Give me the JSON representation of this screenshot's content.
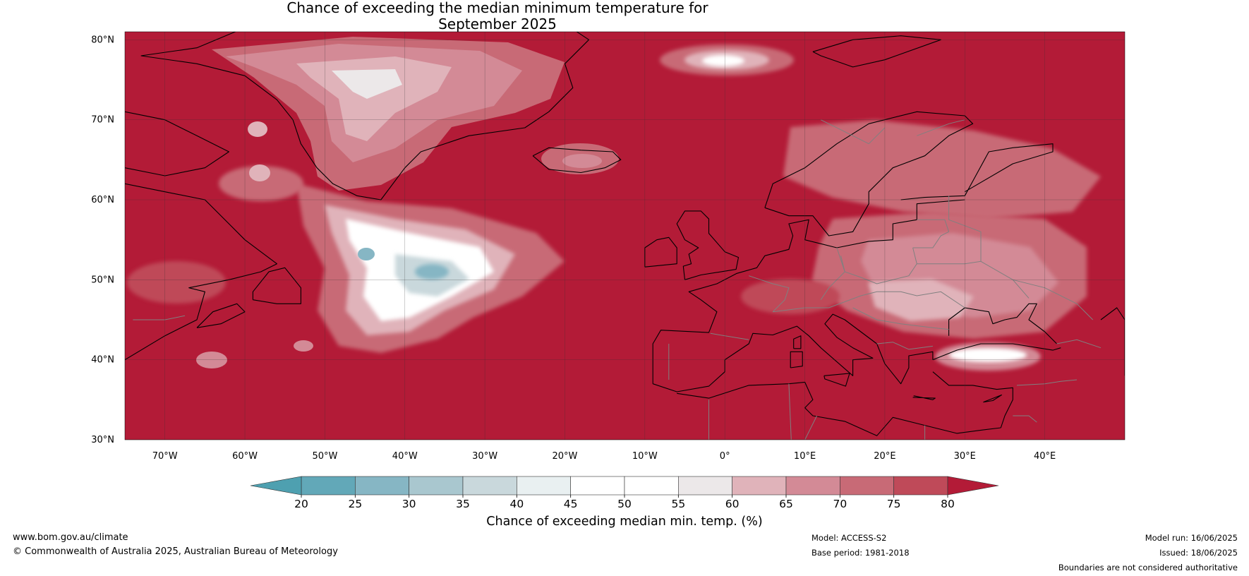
{
  "title": {
    "line1": "Chance of exceeding the median minimum temperature for",
    "line2": "September 2025"
  },
  "map": {
    "lat_labels": [
      "80°N",
      "70°N",
      "60°N",
      "50°N",
      "40°N",
      "30°N"
    ],
    "lon_labels": [
      "70°W",
      "60°W",
      "50°W",
      "40°W",
      "30°W",
      "20°W",
      "10°W",
      "0°",
      "10°E",
      "20°E",
      "30°E",
      "40°E"
    ],
    "lon_range": [
      -75,
      50
    ],
    "lat_range": [
      30,
      81
    ],
    "ocean_color": "#b31b37",
    "coastline_color": "#000000",
    "border_color": "#808080"
  },
  "colorbar": {
    "label": "Chance of exceeding median min. temp. (%)",
    "ticks": [
      "20",
      "25",
      "30",
      "35",
      "40",
      "45",
      "50",
      "55",
      "60",
      "65",
      "70",
      "75",
      "80"
    ],
    "under_color": "#4ea0b0",
    "over_color": "#b31b37",
    "colors": [
      "#62a8b8",
      "#86b6c4",
      "#a9c7cf",
      "#c9d8dc",
      "#e9f0f1",
      "#ffffff",
      "#ffffff",
      "#ece8e9",
      "#e0b3ba",
      "#d38a96",
      "#c86a76",
      "#bf4a59"
    ]
  },
  "footer": {
    "url": "www.bom.gov.au/climate",
    "copyright": "© Commonwealth of Australia 2025, Australian Bureau of Meteorology",
    "model": "Model: ACCESS-S2",
    "base_period": "Base period: 1981-2018",
    "model_run": "Model run: 16/06/2025",
    "issued": "Issued: 18/06/2025",
    "disclaimer": "Boundaries are not considered authoritative"
  }
}
